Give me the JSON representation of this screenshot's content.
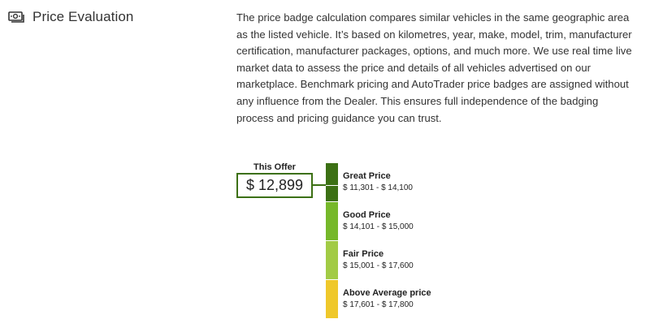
{
  "section": {
    "title": "Price Evaluation",
    "icon": "money-icon"
  },
  "description": "The price badge calculation compares similar vehicles in the same geographic area as the listed vehicle. It’s based on kilometres, year, make, model, trim, manufacturer certification, manufacturer packages, options, and much more. We use real time live market data to assess the price and details of all vehicles advertised on our marketplace. Benchmark pricing and AutoTrader price badges are assigned without any influence from the Dealer. This ensures full independence of the badging process and pricing guidance you can trust.",
  "offer": {
    "label": "This Offer",
    "price": "$ 12,899"
  },
  "buckets": [
    {
      "name": "Great Price",
      "range": "$ 11,301 - $ 14,100",
      "color": "#3c7014"
    },
    {
      "name": "Good Price",
      "range": "$ 14,101 - $ 15,000",
      "color": "#76b82a"
    },
    {
      "name": "Fair Price",
      "range": "$ 15,001 - $ 17,600",
      "color": "#a2cb45"
    },
    {
      "name": "Above Average price",
      "range": "$ 17,601 - $ 17,800",
      "color": "#efc82b"
    }
  ]
}
